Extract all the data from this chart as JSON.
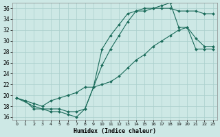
{
  "xlabel": "Humidex (Indice chaleur)",
  "bg_color": "#cde8e5",
  "line_color": "#1a6b5a",
  "grid_color": "#aacfcc",
  "xlim": [
    -0.5,
    23.5
  ],
  "ylim": [
    15.5,
    37
  ],
  "xticks": [
    0,
    1,
    2,
    3,
    4,
    5,
    6,
    7,
    8,
    9,
    10,
    11,
    12,
    13,
    14,
    15,
    16,
    17,
    18,
    19,
    20,
    21,
    22,
    23
  ],
  "yticks": [
    16,
    18,
    20,
    22,
    24,
    26,
    28,
    30,
    32,
    34,
    36
  ],
  "series": [
    {
      "x": [
        0,
        1,
        2,
        3,
        4,
        5,
        6,
        7,
        8,
        9,
        10,
        11,
        12,
        13,
        14,
        15,
        16,
        17,
        18,
        19,
        20,
        21,
        22,
        23
      ],
      "y": [
        19.5,
        19.0,
        17.5,
        17.5,
        17.0,
        17.0,
        16.5,
        16.0,
        17.5,
        21.5,
        28.5,
        31.0,
        33.0,
        35.0,
        35.5,
        35.5,
        36.0,
        36.0,
        36.0,
        35.5,
        35.5,
        35.5,
        35.0,
        35.0
      ]
    },
    {
      "x": [
        0,
        2,
        3,
        4,
        5,
        6,
        7,
        8,
        9,
        10,
        11,
        12,
        13,
        14,
        15,
        16,
        17,
        18,
        19,
        20,
        21,
        22,
        23
      ],
      "y": [
        19.5,
        18.0,
        17.5,
        17.5,
        17.5,
        17.0,
        17.0,
        17.5,
        21.5,
        25.5,
        28.5,
        31.0,
        33.5,
        35.5,
        36.0,
        36.0,
        36.5,
        37.0,
        32.5,
        32.5,
        30.5,
        29.0,
        29.0
      ]
    },
    {
      "x": [
        0,
        2,
        3,
        4,
        5,
        6,
        7,
        8,
        9,
        10,
        11,
        12,
        13,
        14,
        15,
        16,
        17,
        18,
        19,
        20,
        21,
        22,
        23
      ],
      "y": [
        19.5,
        18.5,
        18.0,
        19.0,
        19.5,
        20.0,
        20.5,
        21.5,
        21.5,
        22.0,
        22.5,
        23.5,
        25.0,
        26.5,
        27.5,
        29.0,
        30.0,
        31.0,
        32.0,
        32.5,
        28.5,
        28.5,
        28.5
      ]
    }
  ]
}
